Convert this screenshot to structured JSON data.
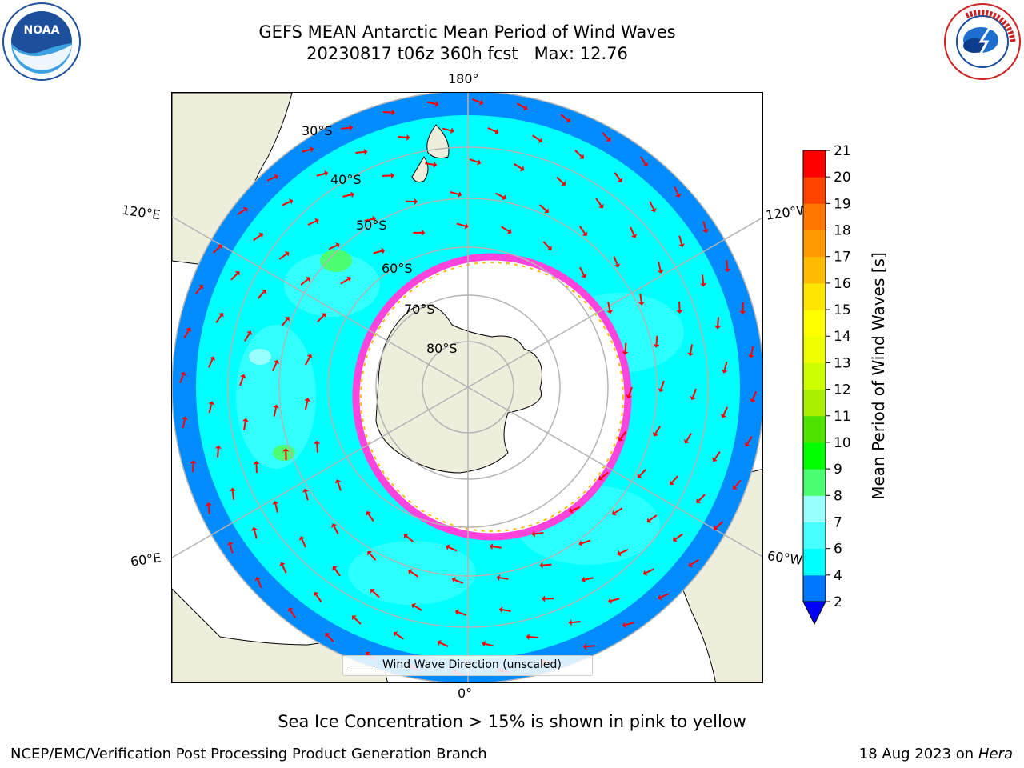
{
  "title": {
    "line1": "GEFS MEAN Antarctic Mean Period of Wind Waves",
    "line2": "20230817 t06z 360h fcst   Max: 12.76"
  },
  "logos": {
    "left": "noaa-logo",
    "right": "national-weather-service-logo",
    "left_text": "NOAA",
    "right_text": "NATIONAL WEATHER SERVICE"
  },
  "map": {
    "projection": "south-polar-stereographic",
    "longitude_labels": [
      "180°",
      "120°E",
      "120°W",
      "60°E",
      "60°W",
      "0°"
    ],
    "latitude_labels": [
      "30°S",
      "40°S",
      "50°S",
      "60°S",
      "70°S",
      "80°S"
    ],
    "legend": "Wind Wave Direction (unscaled)",
    "colors": {
      "land": "#efeddc",
      "ocean_2_4": "#0077ff",
      "ocean_4_6": "#00ffff",
      "ocean_6_8": "#48ffff",
      "ocean_8_9": "#99ffff",
      "ocean_9_10": "#4cff72",
      "sea_ice": "#ff44dd",
      "arrows": "#ff0000",
      "grid": "#b4b4b4"
    }
  },
  "colorbar": {
    "label": "Mean Period of Wind Waves [s]",
    "ticks": [
      "2",
      "4",
      "6",
      "7",
      "8",
      "9",
      "10",
      "11",
      "12",
      "13",
      "14",
      "15",
      "16",
      "17",
      "18",
      "19",
      "20",
      "21"
    ],
    "colors": [
      "#0077ff",
      "#00ffff",
      "#48ffff",
      "#99ffff",
      "#4cff72",
      "#00ff00",
      "#4fe200",
      "#aaee00",
      "#ccff00",
      "#eeff00",
      "#ffff00",
      "#ffe600",
      "#ffbb00",
      "#ff9900",
      "#ff7700",
      "#ff4400",
      "#ff0000"
    ],
    "extend_color": "#0000ff"
  },
  "notes": {
    "sea_ice": "Sea Ice Concentration > 15% is shown in pink to yellow",
    "producer": "NCEP/EMC/Verification Post Processing Product Generation Branch",
    "date": "18 Aug 2023 on",
    "machine": "Hera"
  }
}
